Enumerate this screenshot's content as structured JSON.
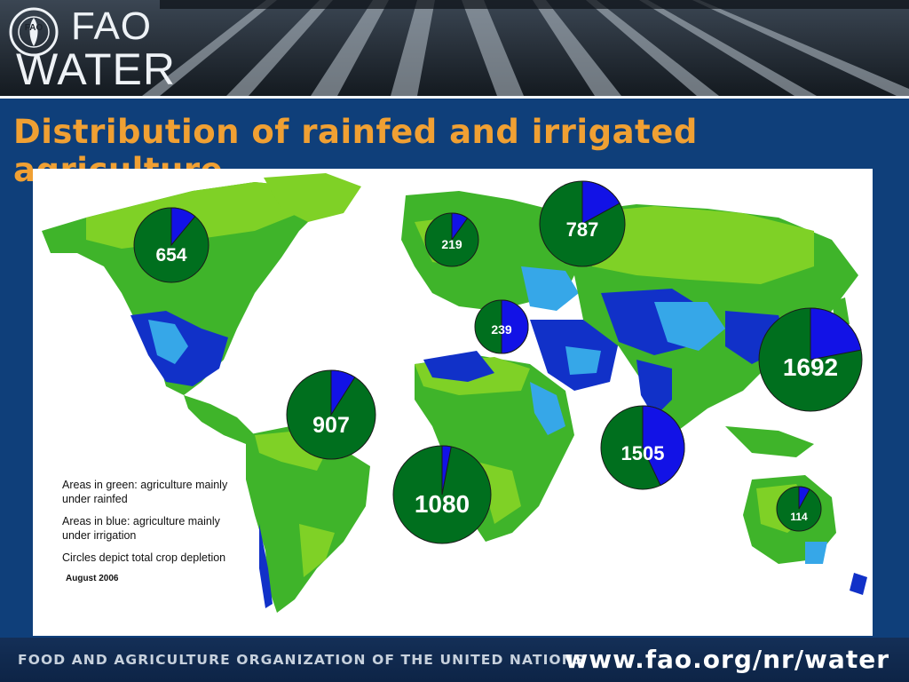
{
  "header": {
    "logo_line1": "FAO",
    "logo_line2": "WATER",
    "emblem_text": "FIAT PANIS"
  },
  "title": "Distribution of rainfed and irrigated agriculture",
  "legend": {
    "green": "Areas in green: agriculture mainly under  rainfed",
    "blue": "Areas in blue: agriculture mainly under irrigation",
    "circles": "Circles depict total crop depletion",
    "date": "August 2006"
  },
  "colors": {
    "rainfed_green": "#006f1e",
    "irrigated_blue": "#1212e6",
    "land_light_green": "#7fd126",
    "land_green": "#3fb42a",
    "irrig_dark_blue": "#1131c8",
    "irrig_light_blue": "#36a7e8",
    "title_orange": "#f0a033",
    "background_navy": "#0f3f7a"
  },
  "pies": [
    {
      "id": "north-america",
      "label": "654",
      "irrigated_share": 0.11
    },
    {
      "id": "europe-west",
      "label": "219",
      "irrigated_share": 0.1
    },
    {
      "id": "europe-east",
      "label": "787",
      "irrigated_share": 0.17
    },
    {
      "id": "near-east",
      "label": "239",
      "irrigated_share": 0.5
    },
    {
      "id": "east-asia",
      "label": "1692",
      "irrigated_share": 0.22
    },
    {
      "id": "latin-america",
      "label": "907",
      "irrigated_share": 0.09
    },
    {
      "id": "sub-saharan-africa",
      "label": "1080",
      "irrigated_share": 0.03
    },
    {
      "id": "south-asia",
      "label": "1505",
      "irrigated_share": 0.43
    },
    {
      "id": "oceania",
      "label": "114",
      "irrigated_share": 0.08
    }
  ],
  "footer": {
    "org": "FOOD AND AGRICULTURE ORGANIZATION OF THE UNITED NATIONS",
    "url": "www.fao.org/nr/water"
  }
}
